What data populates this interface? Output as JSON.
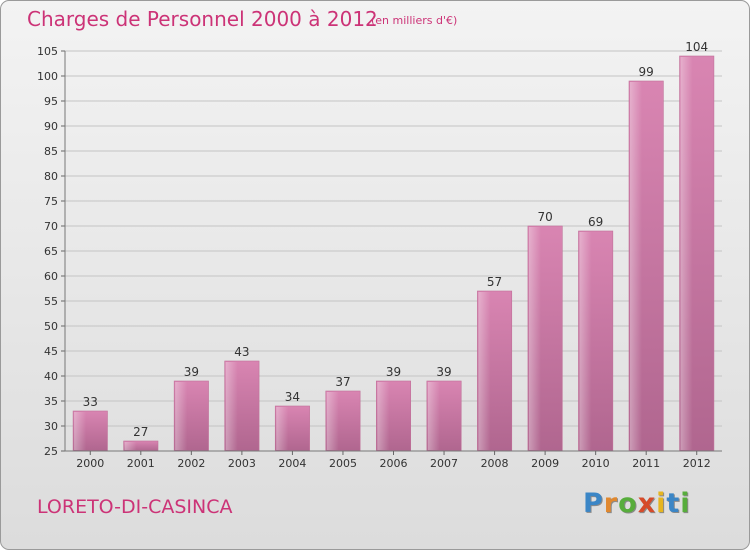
{
  "chart_data": {
    "type": "bar",
    "title": "Charges de Personnel 2000 à 2012",
    "subtitle": "(en milliers d'€)",
    "categories": [
      "2000",
      "2001",
      "2002",
      "2003",
      "2004",
      "2005",
      "2006",
      "2007",
      "2008",
      "2009",
      "2010",
      "2011",
      "2012"
    ],
    "values": [
      33,
      27,
      39,
      43,
      34,
      37,
      39,
      39,
      57,
      70,
      69,
      99,
      104
    ],
    "data_labels": [
      "33",
      "27",
      "39",
      "43",
      "34",
      "37",
      "39",
      "39",
      "57",
      "70",
      "69",
      "99",
      "104"
    ],
    "ylim": [
      25,
      105
    ],
    "yticks": [
      25,
      30,
      35,
      40,
      45,
      50,
      55,
      60,
      65,
      70,
      75,
      80,
      85,
      90,
      95,
      100,
      105
    ],
    "xlabel": "",
    "ylabel": "",
    "grid": true,
    "bar_color": "#d985b2",
    "bar_color_dark": "#b0668f"
  },
  "place": "LORETO-DI-CASINCA",
  "logo": {
    "letters": [
      "P",
      "r",
      "o",
      "x",
      "i",
      "t",
      "i"
    ],
    "colors": [
      "#3b86c6",
      "#e0882f",
      "#57ad3c",
      "#d64b2a",
      "#e6b51f",
      "#3b86c6",
      "#57ad3c"
    ]
  }
}
